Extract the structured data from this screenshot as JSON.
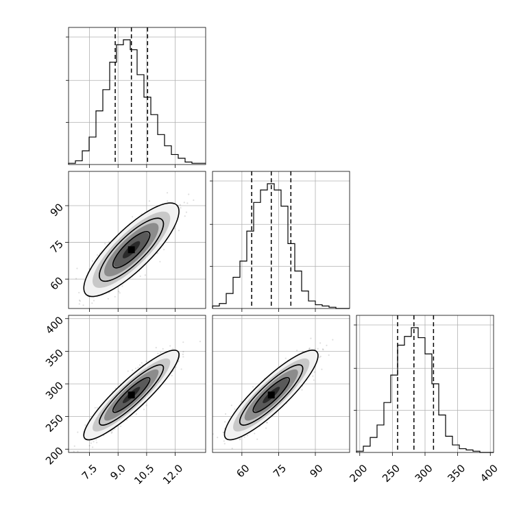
{
  "chart_data": {
    "type": "corner",
    "grid": true,
    "parameters": [
      {
        "range": [
          6.4,
          13.6
        ],
        "ticks": [
          7.5,
          9.0,
          10.5,
          12.0
        ],
        "tick_labels": [
          "7.5",
          "9.0",
          "10.5",
          "12.0"
        ],
        "quantiles": [
          8.85,
          9.7,
          10.55
        ],
        "hist": {
          "edges_start": 6.4,
          "bin_width": 0.36,
          "counts": [
            1,
            3,
            11,
            22,
            43,
            60,
            82,
            96,
            100,
            92,
            72,
            54,
            40,
            24,
            15,
            8,
            5,
            2,
            1,
            1
          ]
        }
      },
      {
        "range": [
          48,
          104
        ],
        "ticks": [
          60,
          75,
          90
        ],
        "tick_labels": [
          "60",
          "75",
          "90"
        ],
        "quantiles": [
          64,
          72,
          80
        ],
        "hist": {
          "edges_start": 48,
          "bin_width": 2.8,
          "counts": [
            2,
            4,
            12,
            25,
            38,
            62,
            85,
            95,
            100,
            95,
            82,
            52,
            30,
            14,
            6,
            3,
            2,
            1,
            0,
            0
          ]
        }
      },
      {
        "range": [
          195,
          405
        ],
        "ticks": [
          200,
          250,
          300,
          350,
          400
        ],
        "tick_labels": [
          "200",
          "250",
          "300",
          "350",
          "400"
        ],
        "quantiles": [
          258,
          283,
          313
        ],
        "hist": {
          "edges_start": 195,
          "bin_width": 10.5,
          "counts": [
            1,
            5,
            12,
            22,
            40,
            62,
            86,
            93,
            100,
            92,
            79,
            55,
            30,
            13,
            6,
            3,
            2,
            1,
            0,
            0
          ]
        }
      }
    ],
    "pairs": [
      {
        "x": 0,
        "y": 1,
        "center": [
          9.7,
          72
        ],
        "sd": [
          1.02,
          7.8
        ],
        "rho": 0.82
      },
      {
        "x": 0,
        "y": 2,
        "center": [
          9.7,
          283
        ],
        "sd": [
          1.02,
          28
        ],
        "rho": 0.9
      },
      {
        "x": 1,
        "y": 2,
        "center": [
          72,
          283
        ],
        "sd": [
          7.8,
          28
        ],
        "rho": 0.88
      }
    ]
  }
}
